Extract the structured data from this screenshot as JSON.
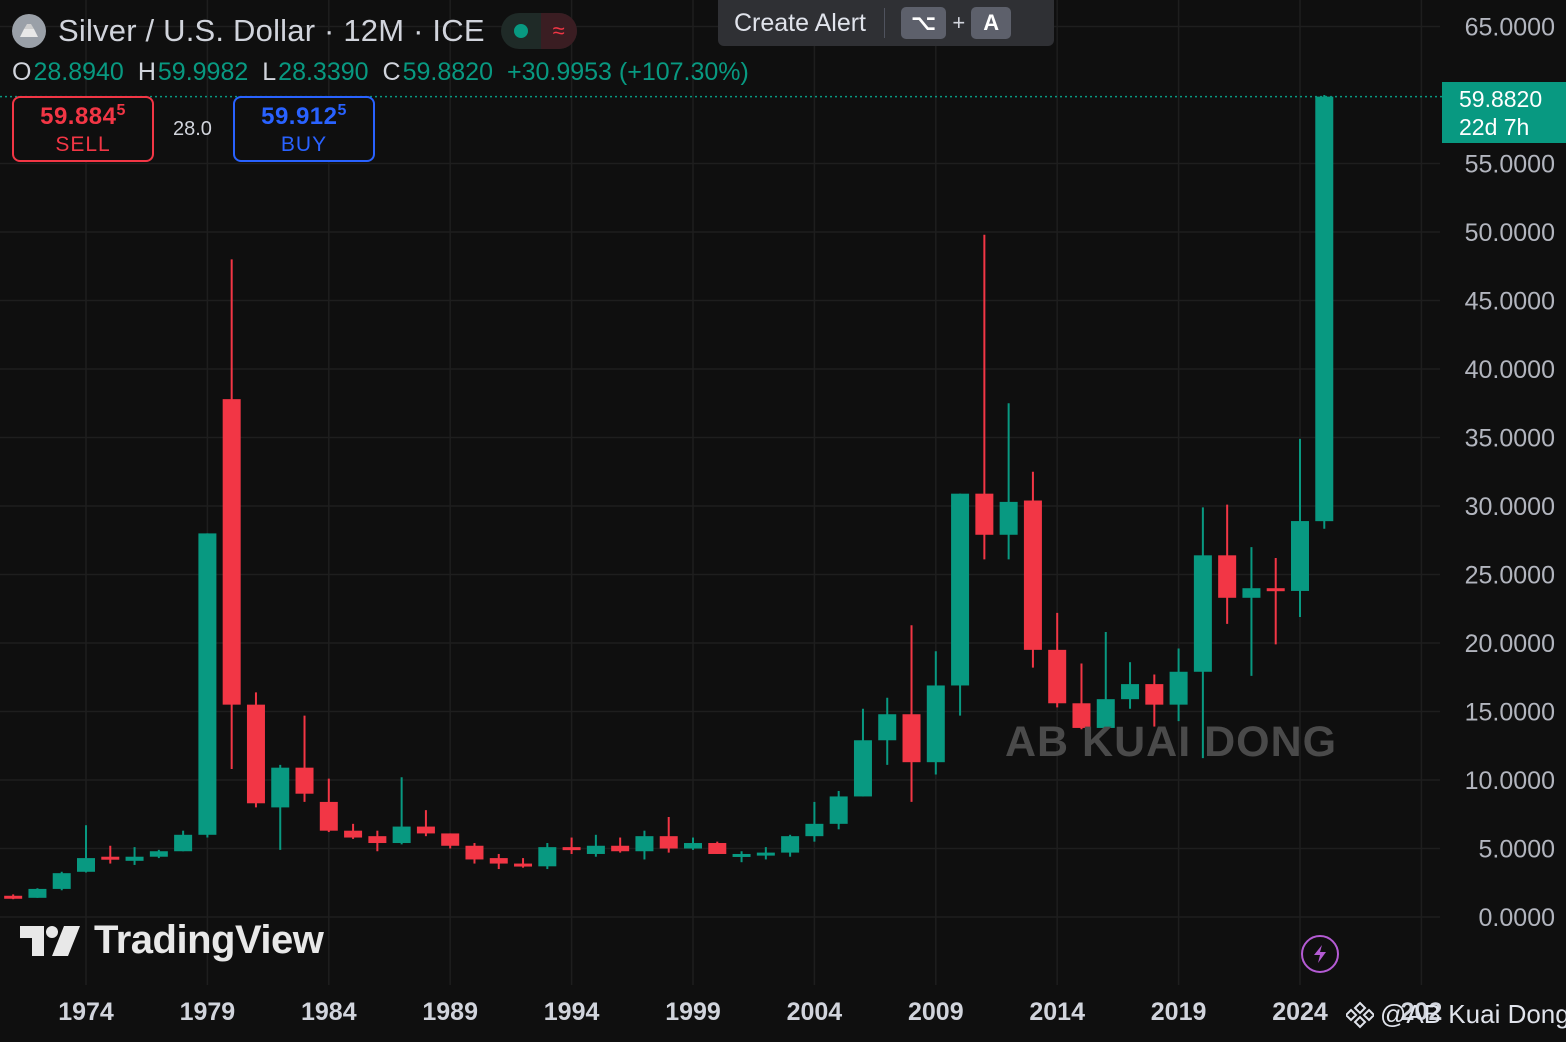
{
  "header": {
    "symbol_title": "Silver / U.S. Dollar · 12M · ICE",
    "status_wave": "≈"
  },
  "alert": {
    "label": "Create Alert",
    "key1": "⌥",
    "plus": "+",
    "key2": "A"
  },
  "ohlc": {
    "o_label": "O",
    "o_value": "28.8940",
    "h_label": "H",
    "h_value": "59.9982",
    "l_label": "L",
    "l_value": "28.3390",
    "c_label": "C",
    "c_value": "59.8820",
    "change": "+30.9953 (+107.30%)"
  },
  "trade": {
    "sell_price": "59.884",
    "sell_sup": "5",
    "sell_label": "SELL",
    "spread": "28.0",
    "buy_price": "59.912",
    "buy_sup": "5",
    "buy_label": "BUY"
  },
  "last_price": {
    "value": "59.8820",
    "countdown": "22d 7h"
  },
  "branding": {
    "logo_text": "TradingView",
    "watermark": "AB KUAI DONG",
    "credit": "@AB Kuai Dong"
  },
  "colors": {
    "up": "#089981",
    "down": "#f23645",
    "background": "#0f0f0f",
    "grid": "#1e1e1e"
  },
  "chart_data": {
    "type": "candlestick",
    "y_ticks": [
      "65.0000",
      "55.0000",
      "50.0000",
      "45.0000",
      "40.0000",
      "35.0000",
      "30.0000",
      "25.0000",
      "20.0000",
      "15.0000",
      "10.0000",
      "5.0000",
      "0.0000"
    ],
    "ylim": [
      0,
      65
    ],
    "x_ticks": [
      "1974",
      "1979",
      "1984",
      "1989",
      "1994",
      "1999",
      "2004",
      "2009",
      "2014",
      "2019",
      "2024",
      "202"
    ],
    "candles": [
      {
        "year": 1971,
        "o": 1.55,
        "h": 1.65,
        "l": 1.3,
        "c": 1.4
      },
      {
        "year": 1972,
        "o": 1.4,
        "h": 2.1,
        "l": 1.4,
        "c": 2.05
      },
      {
        "year": 1973,
        "o": 2.05,
        "h": 3.3,
        "l": 1.95,
        "c": 3.2
      },
      {
        "year": 1974,
        "o": 3.3,
        "h": 6.7,
        "l": 3.25,
        "c": 4.3
      },
      {
        "year": 1975,
        "o": 4.4,
        "h": 5.2,
        "l": 3.9,
        "c": 4.2
      },
      {
        "year": 1976,
        "o": 4.1,
        "h": 5.1,
        "l": 3.8,
        "c": 4.4
      },
      {
        "year": 1977,
        "o": 4.4,
        "h": 4.9,
        "l": 4.3,
        "c": 4.8
      },
      {
        "year": 1978,
        "o": 4.8,
        "h": 6.3,
        "l": 4.8,
        "c": 6.0
      },
      {
        "year": 1979,
        "o": 6.0,
        "h": 28.0,
        "l": 5.8,
        "c": 28.0
      },
      {
        "year": 1980,
        "o": 37.8,
        "h": 48.0,
        "l": 10.8,
        "c": 15.5
      },
      {
        "year": 1981,
        "o": 15.5,
        "h": 16.4,
        "l": 8.0,
        "c": 8.3
      },
      {
        "year": 1982,
        "o": 8.0,
        "h": 11.1,
        "l": 4.9,
        "c": 10.9
      },
      {
        "year": 1983,
        "o": 10.9,
        "h": 14.7,
        "l": 8.4,
        "c": 9.0
      },
      {
        "year": 1984,
        "o": 8.4,
        "h": 10.1,
        "l": 6.2,
        "c": 6.3
      },
      {
        "year": 1985,
        "o": 6.3,
        "h": 6.8,
        "l": 5.7,
        "c": 5.8
      },
      {
        "year": 1986,
        "o": 5.9,
        "h": 6.3,
        "l": 4.8,
        "c": 5.4
      },
      {
        "year": 1987,
        "o": 5.4,
        "h": 10.2,
        "l": 5.3,
        "c": 6.6
      },
      {
        "year": 1988,
        "o": 6.6,
        "h": 7.8,
        "l": 5.9,
        "c": 6.1
      },
      {
        "year": 1989,
        "o": 6.1,
        "h": 6.1,
        "l": 5.0,
        "c": 5.2
      },
      {
        "year": 1990,
        "o": 5.2,
        "h": 5.4,
        "l": 3.9,
        "c": 4.2
      },
      {
        "year": 1991,
        "o": 4.3,
        "h": 4.6,
        "l": 3.5,
        "c": 3.9
      },
      {
        "year": 1992,
        "o": 3.9,
        "h": 4.3,
        "l": 3.6,
        "c": 3.7
      },
      {
        "year": 1993,
        "o": 3.7,
        "h": 5.4,
        "l": 3.5,
        "c": 5.1
      },
      {
        "year": 1994,
        "o": 5.1,
        "h": 5.8,
        "l": 4.6,
        "c": 4.9
      },
      {
        "year": 1995,
        "o": 4.6,
        "h": 6.0,
        "l": 4.4,
        "c": 5.2
      },
      {
        "year": 1996,
        "o": 5.2,
        "h": 5.8,
        "l": 4.7,
        "c": 4.8
      },
      {
        "year": 1997,
        "o": 4.8,
        "h": 6.3,
        "l": 4.2,
        "c": 5.9
      },
      {
        "year": 1998,
        "o": 5.9,
        "h": 7.3,
        "l": 4.7,
        "c": 5.0
      },
      {
        "year": 1999,
        "o": 5.0,
        "h": 5.8,
        "l": 4.9,
        "c": 5.4
      },
      {
        "year": 2000,
        "o": 5.4,
        "h": 5.5,
        "l": 4.6,
        "c": 4.6
      },
      {
        "year": 2001,
        "o": 4.6,
        "h": 4.8,
        "l": 4.0,
        "c": 4.6
      },
      {
        "year": 2002,
        "o": 4.6,
        "h": 5.1,
        "l": 4.2,
        "c": 4.7
      },
      {
        "year": 2003,
        "o": 4.7,
        "h": 6.0,
        "l": 4.4,
        "c": 5.9
      },
      {
        "year": 2004,
        "o": 5.9,
        "h": 8.4,
        "l": 5.5,
        "c": 6.8
      },
      {
        "year": 2005,
        "o": 6.8,
        "h": 9.2,
        "l": 6.4,
        "c": 8.8
      },
      {
        "year": 2006,
        "o": 8.8,
        "h": 15.2,
        "l": 8.8,
        "c": 12.9
      },
      {
        "year": 2007,
        "o": 12.9,
        "h": 16.0,
        "l": 11.1,
        "c": 14.8
      },
      {
        "year": 2008,
        "o": 14.8,
        "h": 21.3,
        "l": 8.4,
        "c": 11.3
      },
      {
        "year": 2009,
        "o": 11.3,
        "h": 19.4,
        "l": 10.4,
        "c": 16.9
      },
      {
        "year": 2010,
        "o": 16.9,
        "h": 30.9,
        "l": 14.7,
        "c": 30.9
      },
      {
        "year": 2011,
        "o": 30.9,
        "h": 49.8,
        "l": 26.1,
        "c": 27.9
      },
      {
        "year": 2012,
        "o": 27.9,
        "h": 37.5,
        "l": 26.1,
        "c": 30.3
      },
      {
        "year": 2013,
        "o": 30.4,
        "h": 32.5,
        "l": 18.2,
        "c": 19.5
      },
      {
        "year": 2014,
        "o": 19.5,
        "h": 22.2,
        "l": 15.3,
        "c": 15.6
      },
      {
        "year": 2015,
        "o": 15.6,
        "h": 18.5,
        "l": 13.7,
        "c": 13.8
      },
      {
        "year": 2016,
        "o": 13.8,
        "h": 20.8,
        "l": 13.6,
        "c": 15.9
      },
      {
        "year": 2017,
        "o": 15.9,
        "h": 18.6,
        "l": 15.2,
        "c": 17.0
      },
      {
        "year": 2018,
        "o": 17.0,
        "h": 17.7,
        "l": 13.9,
        "c": 15.5
      },
      {
        "year": 2019,
        "o": 15.5,
        "h": 19.6,
        "l": 14.3,
        "c": 17.9
      },
      {
        "year": 2020,
        "o": 17.9,
        "h": 29.9,
        "l": 11.6,
        "c": 26.4
      },
      {
        "year": 2021,
        "o": 26.4,
        "h": 30.1,
        "l": 21.4,
        "c": 23.3
      },
      {
        "year": 2022,
        "o": 23.3,
        "h": 27.0,
        "l": 17.6,
        "c": 24.0
      },
      {
        "year": 2023,
        "o": 24.0,
        "h": 26.2,
        "l": 19.9,
        "c": 23.8
      },
      {
        "year": 2024,
        "o": 23.8,
        "h": 34.9,
        "l": 21.9,
        "c": 28.9
      },
      {
        "year": 2025,
        "o": 28.894,
        "h": 59.9982,
        "l": 28.339,
        "c": 59.882
      }
    ]
  }
}
